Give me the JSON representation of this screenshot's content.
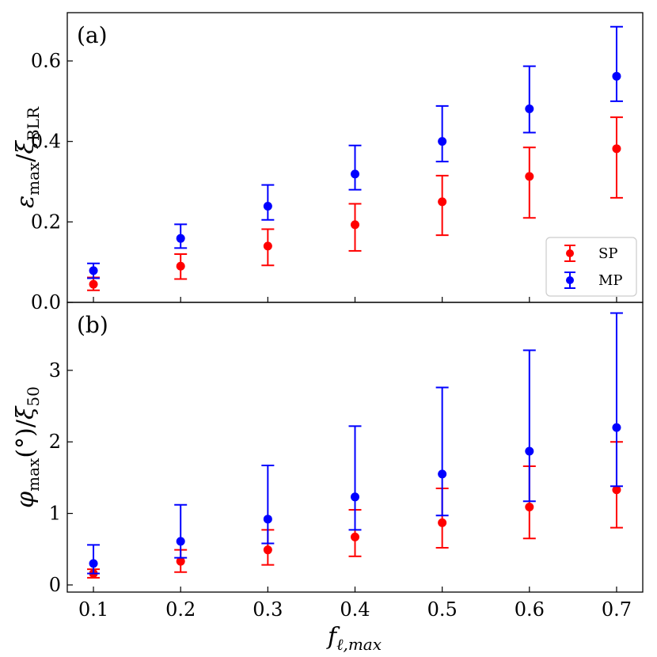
{
  "chart_data": [
    {
      "type": "scatter",
      "panel_label": "(a)",
      "ylabel": "ε_max/ξ_BLR",
      "ylabel_parts": {
        "main": "ε",
        "main_sub": "max",
        "sep": "/",
        "denom": "ξ",
        "denom_sub": "BLR"
      },
      "xlim": [
        0.07,
        0.73
      ],
      "ylim": [
        0.0,
        0.72
      ],
      "yticks": [
        0.0,
        0.2,
        0.4,
        0.6
      ],
      "ytick_labels": [
        "0.0",
        "0.2",
        "0.4",
        "0.6"
      ],
      "legend": {
        "position": "lower-right",
        "entries": [
          "SP",
          "MP"
        ]
      },
      "series": [
        {
          "name": "SP",
          "color": "#ff0000",
          "x": [
            0.1,
            0.2,
            0.3,
            0.4,
            0.5,
            0.6,
            0.7
          ],
          "y": [
            0.045,
            0.09,
            0.14,
            0.193,
            0.25,
            0.313,
            0.382
          ],
          "err_low": [
            0.03,
            0.058,
            0.092,
            0.128,
            0.167,
            0.21,
            0.26
          ],
          "err_high": [
            0.062,
            0.12,
            0.182,
            0.245,
            0.315,
            0.385,
            0.46
          ]
        },
        {
          "name": "MP",
          "color": "#0000ff",
          "x": [
            0.1,
            0.2,
            0.3,
            0.4,
            0.5,
            0.6,
            0.7
          ],
          "y": [
            0.079,
            0.159,
            0.239,
            0.319,
            0.4,
            0.481,
            0.562
          ],
          "err_low": [
            0.06,
            0.135,
            0.205,
            0.28,
            0.35,
            0.422,
            0.5
          ],
          "err_high": [
            0.097,
            0.194,
            0.292,
            0.39,
            0.488,
            0.587,
            0.685
          ]
        }
      ]
    },
    {
      "type": "scatter",
      "panel_label": "(b)",
      "ylabel": "φ_max(°)/ξ_50",
      "ylabel_parts": {
        "main": "φ",
        "main_sub": "max",
        "mid": "(°)",
        "sep": "/",
        "denom": "ξ",
        "denom_sub": "50"
      },
      "xlabel": "f_ℓ,max",
      "xlabel_parts": {
        "main": "f",
        "sub": "ℓ,max"
      },
      "xlim": [
        0.07,
        0.73
      ],
      "ylim": [
        -0.1,
        3.95
      ],
      "xticks": [
        0.1,
        0.2,
        0.3,
        0.4,
        0.5,
        0.6,
        0.7
      ],
      "xtick_labels": [
        "0.1",
        "0.2",
        "0.3",
        "0.4",
        "0.5",
        "0.6",
        "0.7"
      ],
      "yticks": [
        0,
        1,
        2,
        3
      ],
      "ytick_labels": [
        "0",
        "1",
        "2",
        "3"
      ],
      "series": [
        {
          "name": "SP",
          "color": "#ff0000",
          "x": [
            0.1,
            0.2,
            0.3,
            0.4,
            0.5,
            0.6,
            0.7
          ],
          "y": [
            0.16,
            0.33,
            0.49,
            0.67,
            0.87,
            1.09,
            1.33
          ],
          "err_low": [
            0.1,
            0.18,
            0.28,
            0.4,
            0.52,
            0.65,
            0.8
          ],
          "err_high": [
            0.22,
            0.49,
            0.77,
            1.05,
            1.35,
            1.66,
            2.0
          ]
        },
        {
          "name": "MP",
          "color": "#0000ff",
          "x": [
            0.1,
            0.2,
            0.3,
            0.4,
            0.5,
            0.6,
            0.7
          ],
          "y": [
            0.3,
            0.61,
            0.92,
            1.23,
            1.55,
            1.87,
            2.2
          ],
          "err_low": [
            0.16,
            0.38,
            0.58,
            0.77,
            0.97,
            1.17,
            1.38
          ],
          "err_high": [
            0.56,
            1.12,
            1.67,
            2.22,
            2.76,
            3.28,
            3.8
          ]
        }
      ]
    }
  ]
}
